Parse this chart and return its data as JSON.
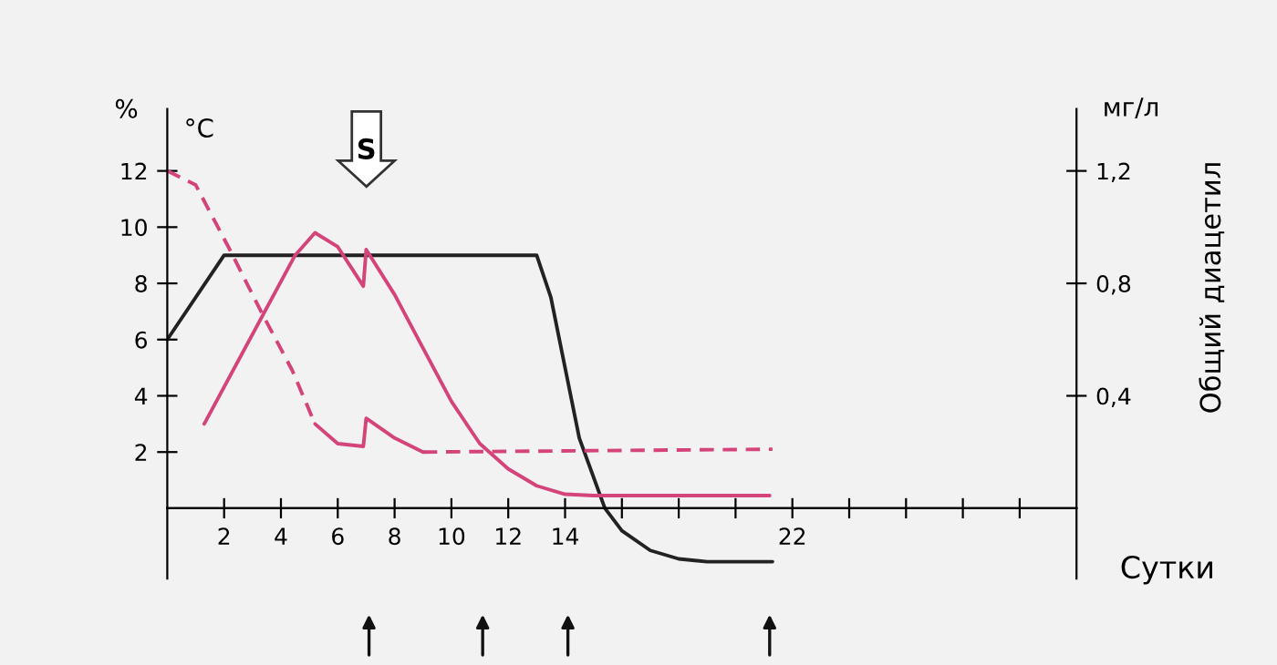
{
  "chart_data": {
    "type": "line",
    "xlabel": "Сутки",
    "ylabel": "%",
    "y2label": "Общий диацетил",
    "annotations": [
      "°C",
      "мг/л",
      "S"
    ],
    "xlim": [
      0,
      32
    ],
    "ylim": [
      -2.5,
      14.2
    ],
    "y2lim": [
      -0.25,
      1.42
    ],
    "xticks": [
      2,
      4,
      6,
      8,
      10,
      12,
      14,
      {
        "value": 16,
        "label": null
      },
      {
        "value": 18,
        "label": null
      },
      {
        "value": 20,
        "label": null
      },
      22,
      {
        "value": 24,
        "label": null
      },
      {
        "value": 26,
        "label": null
      },
      {
        "value": 28,
        "label": null
      },
      {
        "value": 30,
        "label": null
      }
    ],
    "yticks": [
      2,
      4,
      6,
      8,
      10,
      12
    ],
    "y2ticks": [
      {
        "value": 0.4,
        "label": "0,4"
      },
      {
        "value": 0.8,
        "label": "0,8"
      },
      {
        "value": 1.2,
        "label": "1,2"
      }
    ],
    "grid": false,
    "marker": "none",
    "series": [
      {
        "color": "#222222",
        "line_style": "solid",
        "x": [
          0,
          2,
          13,
          13.5,
          14,
          14.5,
          15.4,
          16,
          17,
          18,
          19,
          21.3
        ],
        "values": [
          6,
          9,
          9,
          7.5,
          5,
          2.5,
          0,
          -0.8,
          -1.5,
          -1.8,
          -1.9,
          -1.9
        ]
      },
      {
        "color": "#d4447a",
        "line_style": "solid",
        "axis": "y2",
        "x": [
          1.3,
          4.5,
          5.2,
          6,
          6.9,
          7,
          8,
          9,
          10,
          11,
          12,
          13,
          14,
          15,
          21.2
        ],
        "values": [
          0.3,
          0.9,
          0.98,
          0.93,
          0.79,
          0.92,
          0.76,
          0.57,
          0.38,
          0.23,
          0.14,
          0.08,
          0.05,
          0.045,
          0.045
        ]
      },
      {
        "color": "#d4447a",
        "line_style": "dashed",
        "x": [
          0,
          1,
          2.2,
          3.3,
          4.4,
          5.2,
          5.3,
          9,
          21.3
        ],
        "values": [
          12,
          11.5,
          9.2,
          7,
          4.9,
          3.0,
          null,
          2.0,
          2.1
        ]
      },
      {
        "color": "#d4447a",
        "line_style": "solid",
        "x": [
          5.2,
          6,
          6.9,
          7,
          8,
          9
        ],
        "values": [
          3.0,
          2.3,
          2.2,
          3.2,
          2.5,
          2.0
        ]
      }
    ]
  }
}
